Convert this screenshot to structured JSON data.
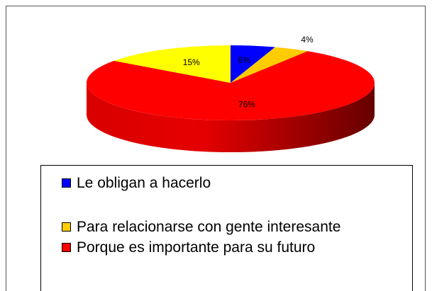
{
  "chart_data": {
    "type": "pie",
    "categories": [
      "Le obligan a hacerlo",
      "Para relacionarse con gente interesante",
      "Porque es importante para su futuro",
      null
    ],
    "values": [
      5,
      4,
      76,
      15
    ],
    "value_labels": [
      "5%",
      "4%",
      "76%",
      "15%"
    ],
    "colors": [
      "#0000ff",
      "#ffcc00",
      "#ff0000",
      "#ffff00"
    ],
    "legend": "bottom"
  }
}
